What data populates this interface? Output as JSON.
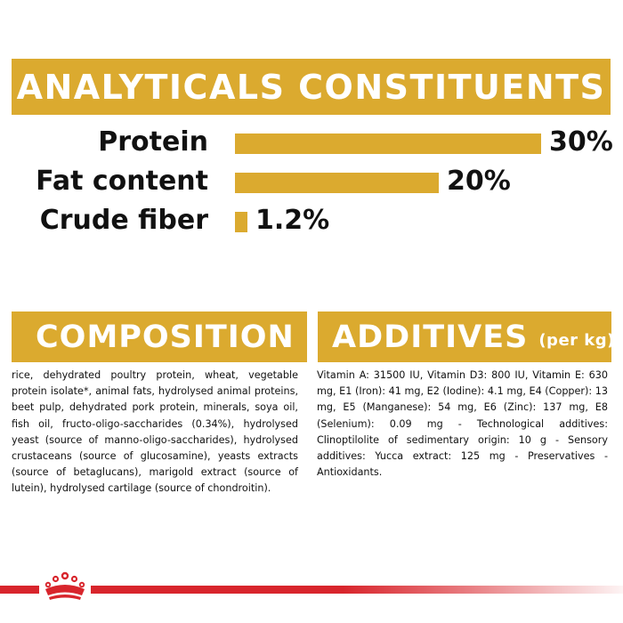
{
  "analytics": {
    "title": "ANALYTICALS CONSTITUENTS",
    "rows": [
      {
        "label": "Protein",
        "value_text": "30%",
        "value": 30
      },
      {
        "label": "Fat content",
        "value_text": "20%",
        "value": 20
      },
      {
        "label": "Crude fiber",
        "value_text": "1.2%",
        "value": 1.2
      }
    ]
  },
  "composition": {
    "title": "COMPOSITION",
    "text": "rice, dehydrated poultry protein, wheat, vegetable protein isolate*, animal fats, hydrolysed animal proteins, beet pulp, dehydrated pork protein, minerals, soya oil, fish oil, fructo-oligo-saccharides (0.34%), hydrolysed yeast (source of manno-oligo-saccharides), hydrolysed crustaceans (source of glucosamine), yeasts extracts (source of betaglucans), marigold extract (source of lutein), hydrolysed cartilage (source of chondroitin)."
  },
  "additives": {
    "title": "ADDITIVES",
    "suffix": "(per kg)",
    "text": "Vitamin A: 31500 IU, Vitamin D3: 800 IU, Vitamin E: 630 mg, E1 (Iron): 41 mg, E2 (Iodine): 4.1 mg, E4 (Copper): 13 mg, E5 (Manganese): 54 mg, E6 (Zinc): 137 mg, E8 (Selenium): 0.09 mg - Technological additives: Clinoptilolite of sedimentary origin: 10 g - Sensory additives: Yucca extract: 125 mg - Preservatives - Antioxidants."
  },
  "colors": {
    "accent": "#dbaa2f",
    "brand_red": "#d8252c"
  },
  "footer": {
    "logo_icon": "crown-icon"
  }
}
